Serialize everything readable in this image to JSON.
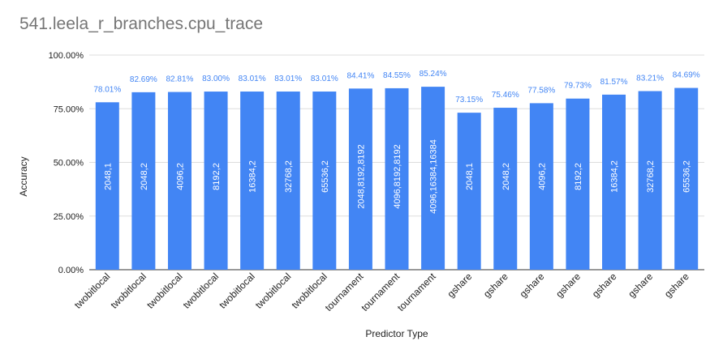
{
  "chart_data": {
    "type": "bar",
    "title": "541.leela_r_branches.cpu_trace",
    "xlabel": "Predictor Type",
    "ylabel": "Accuracy",
    "ylim": [
      0,
      100
    ],
    "y_ticks": [
      "0.00%",
      "25.00%",
      "50.00%",
      "75.00%",
      "100.00%"
    ],
    "grid": true,
    "bar_color": "#4285f4",
    "categories": [
      "twobitlocal",
      "twobitlocal",
      "twobitlocal",
      "twobitlocal",
      "twobitlocal",
      "twobitlocal",
      "twobitlocal",
      "tournament",
      "tournament",
      "tournament",
      "gshare",
      "gshare",
      "gshare",
      "gshare",
      "gshare",
      "gshare",
      "gshare"
    ],
    "values": [
      78.01,
      82.69,
      82.81,
      83.0,
      83.01,
      83.01,
      83.01,
      84.41,
      84.55,
      85.24,
      73.15,
      75.46,
      77.58,
      79.73,
      81.57,
      83.21,
      84.69
    ],
    "value_labels": [
      "78.01%",
      "82.69%",
      "82.81%",
      "83.00%",
      "83.01%",
      "83.01%",
      "83.01%",
      "84.41%",
      "84.55%",
      "85.24%",
      "73.15%",
      "75.46%",
      "77.58%",
      "79.73%",
      "81.57%",
      "83.21%",
      "84.69%"
    ],
    "bar_labels": [
      "2048,1",
      "2048,2",
      "4096,2",
      "8192,2",
      "16384,2",
      "32768,2",
      "65536,2",
      "2048,8192,8192",
      "4096,8192,8192",
      "4096,16384,16384",
      "2048,1",
      "2048,2",
      "4096,2",
      "8192,2",
      "16384,2",
      "32768,2",
      "65536,2"
    ]
  }
}
